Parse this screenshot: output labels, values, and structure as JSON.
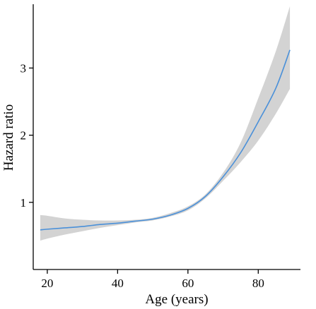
{
  "chart_data": {
    "type": "line",
    "title": "",
    "xlabel": "Age (years)",
    "ylabel": "Hazard ratio",
    "xlim": [
      16,
      92
    ],
    "ylim": [
      0,
      3.95
    ],
    "xticks": [
      20,
      40,
      60,
      80
    ],
    "yticks": [
      1,
      2,
      3
    ],
    "grid": false,
    "legend": "none",
    "colors": {
      "line": "#4a90d9",
      "band": "#d3d3d3"
    },
    "series": [
      {
        "x": [
          18,
          20,
          25,
          30,
          35,
          40,
          45,
          50,
          55,
          60,
          65,
          70,
          75,
          80,
          85,
          89
        ],
        "y": [
          0.59,
          0.6,
          0.62,
          0.64,
          0.67,
          0.69,
          0.72,
          0.75,
          0.81,
          0.91,
          1.09,
          1.38,
          1.74,
          2.2,
          2.7,
          3.27
        ],
        "lower": [
          0.43,
          0.46,
          0.52,
          0.57,
          0.62,
          0.66,
          0.7,
          0.73,
          0.79,
          0.88,
          1.06,
          1.32,
          1.6,
          1.92,
          2.32,
          2.69
        ],
        "upper": [
          0.81,
          0.8,
          0.76,
          0.74,
          0.73,
          0.73,
          0.74,
          0.77,
          0.84,
          0.94,
          1.12,
          1.44,
          1.89,
          2.55,
          3.25,
          3.92
        ]
      }
    ]
  }
}
